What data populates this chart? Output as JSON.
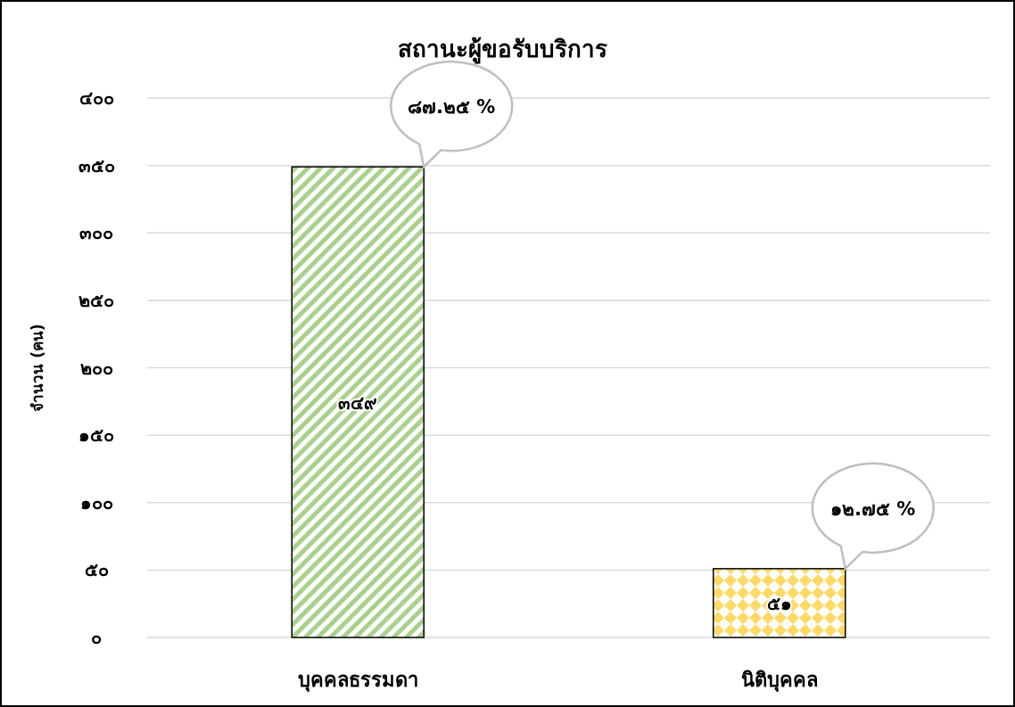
{
  "chart_data": {
    "type": "bar",
    "title": "สถานะผู้ขอรับบริการ",
    "ylabel": "จำนวน (คน)",
    "categories": [
      "บุคคลธรรมดา",
      "นิติบุคคล"
    ],
    "values": [
      349,
      51
    ],
    "colors": [
      "#a9d18e",
      "#ffd966"
    ],
    "value_labels": [
      "๓๔๙",
      "๕๑"
    ],
    "ylim": [
      0,
      400
    ],
    "yticks": [
      {
        "value": 0,
        "label": "๐"
      },
      {
        "value": 50,
        "label": "๕๐"
      },
      {
        "value": 100,
        "label": "๑๐๐"
      },
      {
        "value": 150,
        "label": "๑๕๐"
      },
      {
        "value": 200,
        "label": "๒๐๐"
      },
      {
        "value": 250,
        "label": "๒๕๐"
      },
      {
        "value": 300,
        "label": "๓๐๐"
      },
      {
        "value": 350,
        "label": "๓๕๐"
      },
      {
        "value": 400,
        "label": "๔๐๐"
      }
    ],
    "grid": "y",
    "annotations": [
      "๘๗.๒๕ %",
      "๑๒.๗๕ %"
    ]
  }
}
